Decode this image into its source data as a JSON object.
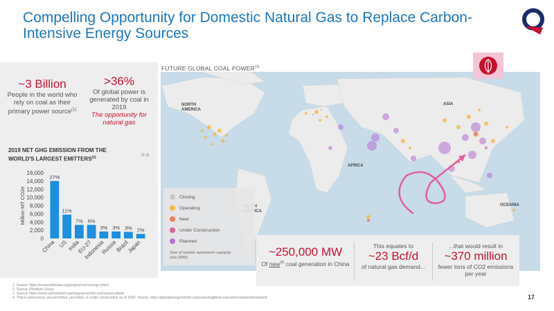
{
  "title": "Compelling Opportunity for Domestic Natural Gas to Replace Carbon-Intensive Energy Sources",
  "stat1": {
    "value": "~3 Billion",
    "desc": "People in the world who rely on coal as their primary power source",
    "sup": "(1)"
  },
  "stat2": {
    "value": ">36%",
    "desc": "Of global power is generated by coal in 2019",
    "accent": "The opportunity for natural gas"
  },
  "emitters": {
    "title": "2019 NET GHG EMISSION FROM THE WORLD'S LARGEST EMITTERS",
    "sup": "(2)",
    "note": "is a"
  },
  "map": {
    "title": "FUTURE GLOBAL COAL POWER",
    "sup": "(3)",
    "labels": {
      "north_america": "NORTH AMERICA",
      "south_america": "SOUTH AMERICA",
      "africa": "AFRICA",
      "asia": "ASIA",
      "oceania": "OCEANIA"
    }
  },
  "legend": {
    "items": [
      {
        "label": "Closing",
        "color": "#c9c9c9"
      },
      {
        "label": "Operating",
        "color": "#f5b942"
      },
      {
        "label": "New",
        "color": "#f47c5a"
      },
      {
        "label": "Under Construction",
        "color": "#e0609a"
      },
      {
        "label": "Planned",
        "color": "#b66fd6"
      }
    ],
    "note": "Size of bubble represents capacity size (MW)"
  },
  "bottom": {
    "cell1": {
      "num": "~250,000 MW",
      "pre": "Of ",
      "new": "new",
      "sup": "(4)",
      "post": " coal generation in China"
    },
    "cell2": {
      "top": "This equates to",
      "num": "~23 Bcf/d",
      "bottom": "of natural gas demand..."
    },
    "cell3": {
      "top": "...that would result in",
      "num": "~370 million",
      "bottom": "fewer tons of CO2 emissions per year"
    }
  },
  "footnotes": [
    "1.     Source: https://ourworldindata.org/graphs/coal-energy-share",
    "2.     Source: Rhodium Group",
    "3.     Source: https://www.carbonbrief.org/mapped-worlds-coal-power-plants",
    "4.     That is announced, pre-permitted, permitted, or under construction as of 2020. Source: https://globalenergymonitor.org/projects/global-coal-plant-tracker/dashboard/"
  ],
  "page_number": "17",
  "colors": {
    "title": "#1b75bb",
    "accent": "#c8102e",
    "bar": "#1b8fe0"
  },
  "chart_data": {
    "type": "bar",
    "categories": [
      "China",
      "US",
      "India",
      "EU-27",
      "Indonesia",
      "Russia",
      "Brazil",
      "Japan"
    ],
    "values": [
      14000,
      5800,
      3300,
      3300,
      1700,
      1700,
      1600,
      1100
    ],
    "data_labels": [
      "27%",
      "11%",
      "7%",
      "6%",
      "3%",
      "3%",
      "3%",
      "2%"
    ],
    "ylabel": "Million MT CO2e",
    "ylim": [
      0,
      16000
    ],
    "yticks": [
      "0",
      "2,000",
      "4,000",
      "6,000",
      "8,000",
      "10,000",
      "12,000",
      "14,000",
      "16,000"
    ],
    "ytick_values": [
      0,
      2000,
      4000,
      6000,
      8000,
      10000,
      12000,
      14000,
      16000
    ],
    "grid": false
  }
}
